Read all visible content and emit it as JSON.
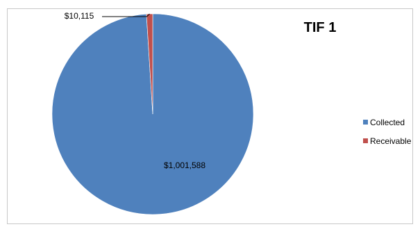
{
  "chart_data": {
    "type": "pie",
    "title": "TIF 1",
    "categories": [
      "Collected",
      "Receivable"
    ],
    "values": [
      1001588,
      10115
    ],
    "data_labels": [
      "$1,001,588",
      "$10,115"
    ],
    "colors": [
      "#4F81BD",
      "#C0504D"
    ],
    "legend_position": "right",
    "grid": false
  }
}
